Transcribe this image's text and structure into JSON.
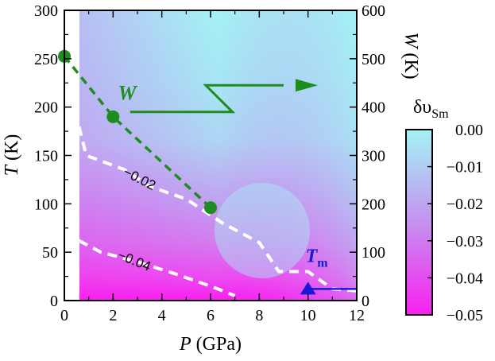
{
  "chart_data": {
    "type": "heatmap",
    "title": "",
    "xlabel": {
      "var": "P",
      "unit": " (GPa)"
    },
    "ylabel_left": {
      "var": "T",
      "unit": " (K)"
    },
    "ylabel_right": {
      "var": "W",
      "unit": " (K)"
    },
    "xlim": [
      0,
      12
    ],
    "ylim_left": [
      0,
      300
    ],
    "ylim_right": [
      0,
      600
    ],
    "x_ticks": [
      0,
      2,
      4,
      6,
      8,
      10,
      12
    ],
    "y_ticks_left": [
      0,
      50,
      100,
      150,
      200,
      250,
      300
    ],
    "y_ticks_right": [
      0,
      100,
      200,
      300,
      400,
      500,
      600
    ],
    "colorbar": {
      "label_main": "δυ",
      "label_sub": "Sm",
      "range": [
        -0.05,
        0.0
      ],
      "ticks": [
        "0.00",
        "−0.01",
        "−0.02",
        "−0.03",
        "−0.04",
        "−0.05"
      ],
      "tick_values": [
        0.0,
        -0.01,
        -0.02,
        -0.03,
        -0.04,
        -0.05
      ],
      "color_top": "#a3f3f5",
      "color_mid": "#c592ef",
      "color_bottom": "#f91ff0"
    },
    "contours": [
      {
        "level_label": "−0.02",
        "points": [
          [
            0.6,
            180
          ],
          [
            0.9,
            150
          ],
          [
            2.5,
            135
          ],
          [
            3.5,
            118
          ],
          [
            5,
            105
          ],
          [
            6.5,
            80
          ],
          [
            8,
            60
          ],
          [
            8.8,
            30
          ],
          [
            10,
            30
          ],
          [
            11,
            12
          ],
          [
            12,
            10
          ]
        ]
      },
      {
        "level_label": "−0.04",
        "points": [
          [
            0.6,
            62
          ],
          [
            1.5,
            50
          ],
          [
            3,
            40
          ],
          [
            4.5,
            28
          ],
          [
            6,
            15
          ],
          [
            7,
            5
          ]
        ]
      }
    ],
    "series": [
      {
        "name": "W",
        "axis": "right",
        "color": "#1e8c1e",
        "style": "dashed-markers",
        "points": [
          [
            0,
            505
          ],
          [
            2,
            380
          ],
          [
            6,
            192
          ]
        ]
      },
      {
        "name": "T",
        "subscript": "m",
        "axis": "left",
        "color": "#1a1ad6",
        "style": "marker-line",
        "points": [
          [
            10,
            12
          ]
        ],
        "line_to": [
          12,
          12
        ]
      }
    ],
    "annotations": {
      "w_label": "W",
      "tm_label": "T",
      "tm_sub": "m",
      "arrow_note": "W refers to right axis"
    }
  }
}
